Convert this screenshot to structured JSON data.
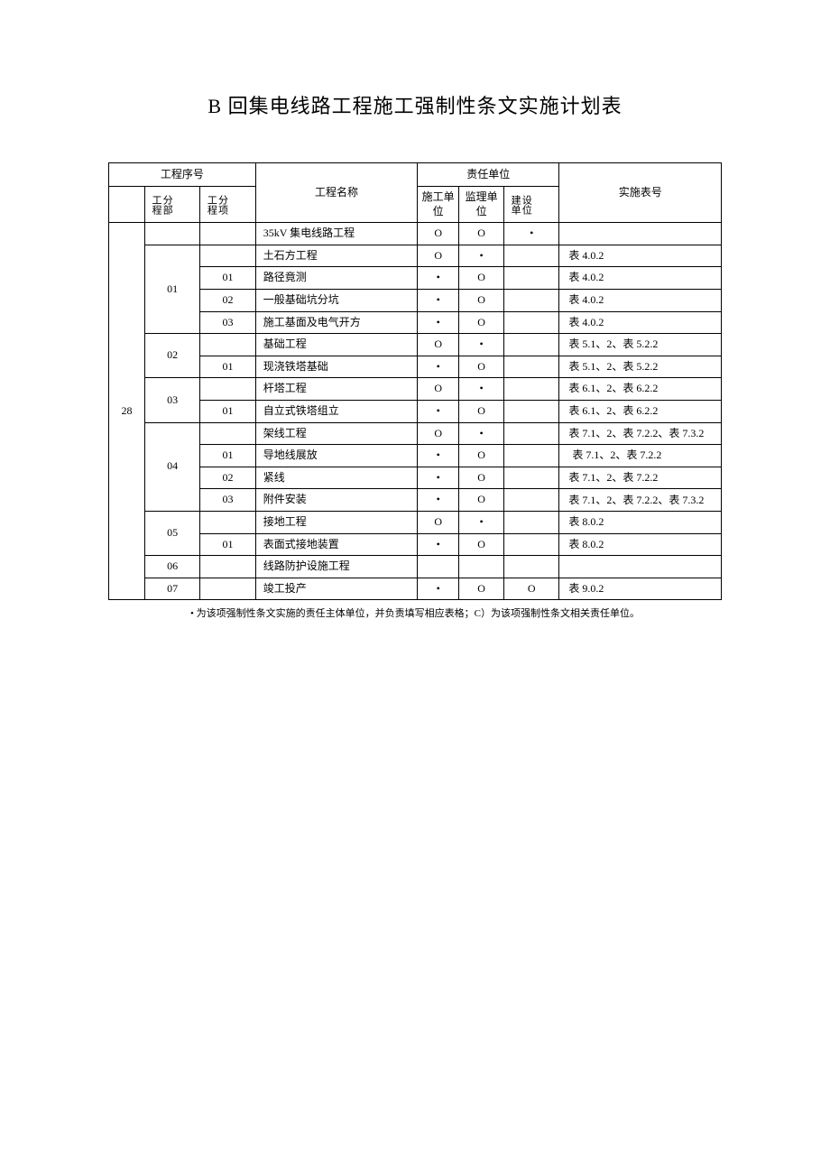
{
  "title": "B 回集电线路工程施工强制性条文实施计划表",
  "headers": {
    "project_seq": "工程序号",
    "sub_project": "分部工程",
    "item_project": "分项工程",
    "project_name": "工程名称",
    "responsible_unit": "责任单位",
    "construction_unit": "施工单位",
    "supervision_unit": "监理单位",
    "design_unit": "设位建单",
    "impl_table_no": "实施表号"
  },
  "main_index": "28",
  "marks": {
    "circle": "O",
    "dot": "•"
  },
  "rows": [
    {
      "sub": "",
      "item": "",
      "name": "35kV 集电线路工程",
      "u1": "O",
      "u2": "O",
      "u3": "•",
      "impl": ""
    },
    {
      "sub": "",
      "item": "",
      "name": "土石方工程",
      "u1": "O",
      "u2": "•",
      "u3": "",
      "impl": "表 4.0.2"
    },
    {
      "sub": "01",
      "item": "01",
      "name": "路径竟测",
      "u1": "•",
      "u2": "O",
      "u3": "",
      "impl": "表 4.0.2"
    },
    {
      "sub": "",
      "item": "02",
      "name": "一般基础坑分坑",
      "u1": "•",
      "u2": "O",
      "u3": "",
      "impl": "表 4.0.2"
    },
    {
      "sub": "",
      "item": "03",
      "name": "施工基面及电气开方",
      "u1": "•",
      "u2": "O",
      "u3": "",
      "impl": "表 4.0.2"
    },
    {
      "sub": "02",
      "item": "",
      "name": "基础工程",
      "u1": "O",
      "u2": "•",
      "u3": "",
      "impl": "表 5.1、2、表 5.2.2"
    },
    {
      "sub": "",
      "item": "01",
      "name": "现浇铁塔基础",
      "u1": "•",
      "u2": "O",
      "u3": "",
      "impl": "表 5.1、2、表 5.2.2"
    },
    {
      "sub": "03",
      "item": "",
      "name": "杆塔工程",
      "u1": "O",
      "u2": "•",
      "u3": "",
      "impl": "表 6.1、2、表 6.2.2"
    },
    {
      "sub": "",
      "item": "01",
      "name": "自立式铁塔组立",
      "u1": "•",
      "u2": "O",
      "u3": "",
      "impl": "表 6.1、2、表 6.2.2"
    },
    {
      "sub": "",
      "item": "",
      "name": "架线工程",
      "u1": "O",
      "u2": "•",
      "u3": "",
      "impl": "表 7.1、2、表 7.2.2、表 7.3.2",
      "clip": true,
      "indent": true
    },
    {
      "sub": "04",
      "item": "01",
      "name": "导地线展放",
      "u1": "•",
      "u2": "O",
      "u3": "",
      "impl": "表 7.1、2、表 7.2.2",
      "indent": true
    },
    {
      "sub": "",
      "item": "02",
      "name": "紧线",
      "u1": "•",
      "u2": "O",
      "u3": "",
      "impl": "表 7.1、2、表 7.2.2"
    },
    {
      "sub": "",
      "item": "03",
      "name": "附件安装",
      "u1": "•",
      "u2": "O",
      "u3": "",
      "impl": "表 7.1、2、表 7.2.2、表 7.3.2",
      "clip": true,
      "indent": true
    },
    {
      "sub": "05",
      "item": "",
      "name": "接地工程",
      "u1": "O",
      "u2": "•",
      "u3": "",
      "impl": "表 8.0.2"
    },
    {
      "sub": "",
      "item": "01",
      "name": "表面式接地装置",
      "u1": "•",
      "u2": "O",
      "u3": "",
      "impl": "表 8.0.2"
    },
    {
      "sub": "06",
      "item": "",
      "name": "线路防护设施工程",
      "u1": "",
      "u2": "",
      "u3": "",
      "impl": ""
    },
    {
      "sub": "07",
      "item": "",
      "name": "竣工投产",
      "u1": "•",
      "u2": "O",
      "u3": "O",
      "impl": "表 9.0.2"
    }
  ],
  "footnote": "• 为该项强制性条文实施的责任主体单位，并负责填写相应表格；C）为该项强制性条文相关责任单位。",
  "sub_groups": [
    {
      "start": 1,
      "span": 4,
      "label": "01"
    },
    {
      "start": 5,
      "span": 2,
      "label": "02"
    },
    {
      "start": 7,
      "span": 2,
      "label": "03"
    },
    {
      "start": 9,
      "span": 4,
      "label": "04"
    },
    {
      "start": 13,
      "span": 2,
      "label": "05"
    },
    {
      "start": 15,
      "span": 1,
      "label": "06"
    },
    {
      "start": 16,
      "span": 1,
      "label": "07"
    }
  ],
  "colors": {
    "text": "#000000",
    "background": "#ffffff",
    "border": "#000000"
  }
}
